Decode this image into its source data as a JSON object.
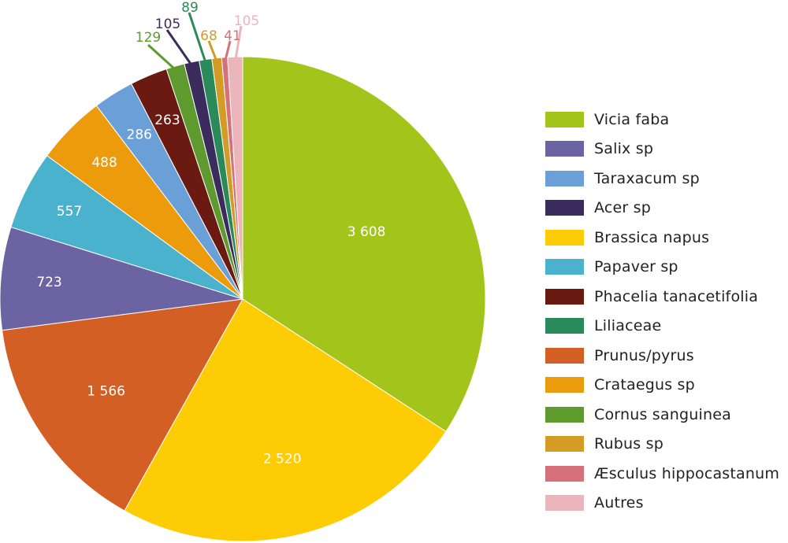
{
  "chart_data": {
    "type": "pie",
    "title": "",
    "series": [
      {
        "name": "Vicia faba",
        "value": 3608,
        "label": "3 608",
        "color": "#a3c41a"
      },
      {
        "name": "Prunus/pyrus",
        "value": 1566,
        "label": "1 566",
        "color": "#d35f25"
      },
      {
        "name": "Brassica napus",
        "value": 2520,
        "label": "2 520",
        "color": "#fdcc05"
      },
      {
        "name": "Salix sp",
        "value": 723,
        "label": "723",
        "color": "#6c64a2"
      },
      {
        "name": "Papaver sp",
        "value": 557,
        "label": "557",
        "color": "#4ab2cc"
      },
      {
        "name": "Crataegus sp",
        "value": 488,
        "label": "488",
        "color": "#eb9b0b"
      },
      {
        "name": "Taraxacum sp",
        "value": 286,
        "label": "286",
        "color": "#6b9fd8"
      },
      {
        "name": "Phacelia tanacetifolia",
        "value": 263,
        "label": "263",
        "color": "#6a1a10"
      },
      {
        "name": "Cornus sanguinea",
        "value": 129,
        "label": "129",
        "color": "#5f9a2e"
      },
      {
        "name": "Acer sp",
        "value": 105,
        "label": "105",
        "color": "#3a2c5c"
      },
      {
        "name": "Liliaceae",
        "value": 89,
        "label": "89",
        "color": "#2a8a5a"
      },
      {
        "name": "Rubus sp",
        "value": 68,
        "label": "68",
        "color": "#d49b25"
      },
      {
        "name": "Æsculus hippocastanum",
        "value": 41,
        "label": "41",
        "color": "#d6707a"
      },
      {
        "name": "Autres",
        "value": 105,
        "label": "105",
        "color": "#eab6bc"
      }
    ],
    "slice_order_clockwise_from_top": [
      "Vicia faba",
      "Brassica napus",
      "Prunus/pyrus",
      "Salix sp",
      "Papaver sp",
      "Crataegus sp",
      "Taraxacum sp",
      "Phacelia tanacetifolia",
      "Cornus sanguinea",
      "Acer sp",
      "Liliaceae",
      "Rubus sp",
      "Æsculus hippocastanum",
      "Autres"
    ],
    "legend_order": [
      "Vicia faba",
      "Salix sp",
      "Taraxacum sp",
      "Acer sp",
      "Brassica napus",
      "Papaver sp",
      "Phacelia tanacetifolia",
      "Liliaceae",
      "Prunus/pyrus",
      "Crataegus sp",
      "Cornus sanguinea",
      "Rubus sp",
      "Æsculus hippocastanum",
      "Autres"
    ],
    "inside_labels": [
      "Vicia faba",
      "Brassica napus",
      "Prunus/pyrus",
      "Salix sp",
      "Papaver sp",
      "Crataegus sp",
      "Taraxacum sp",
      "Phacelia tanacetifolia"
    ],
    "legend_position": "right",
    "label_text_color": "#ffffff"
  }
}
